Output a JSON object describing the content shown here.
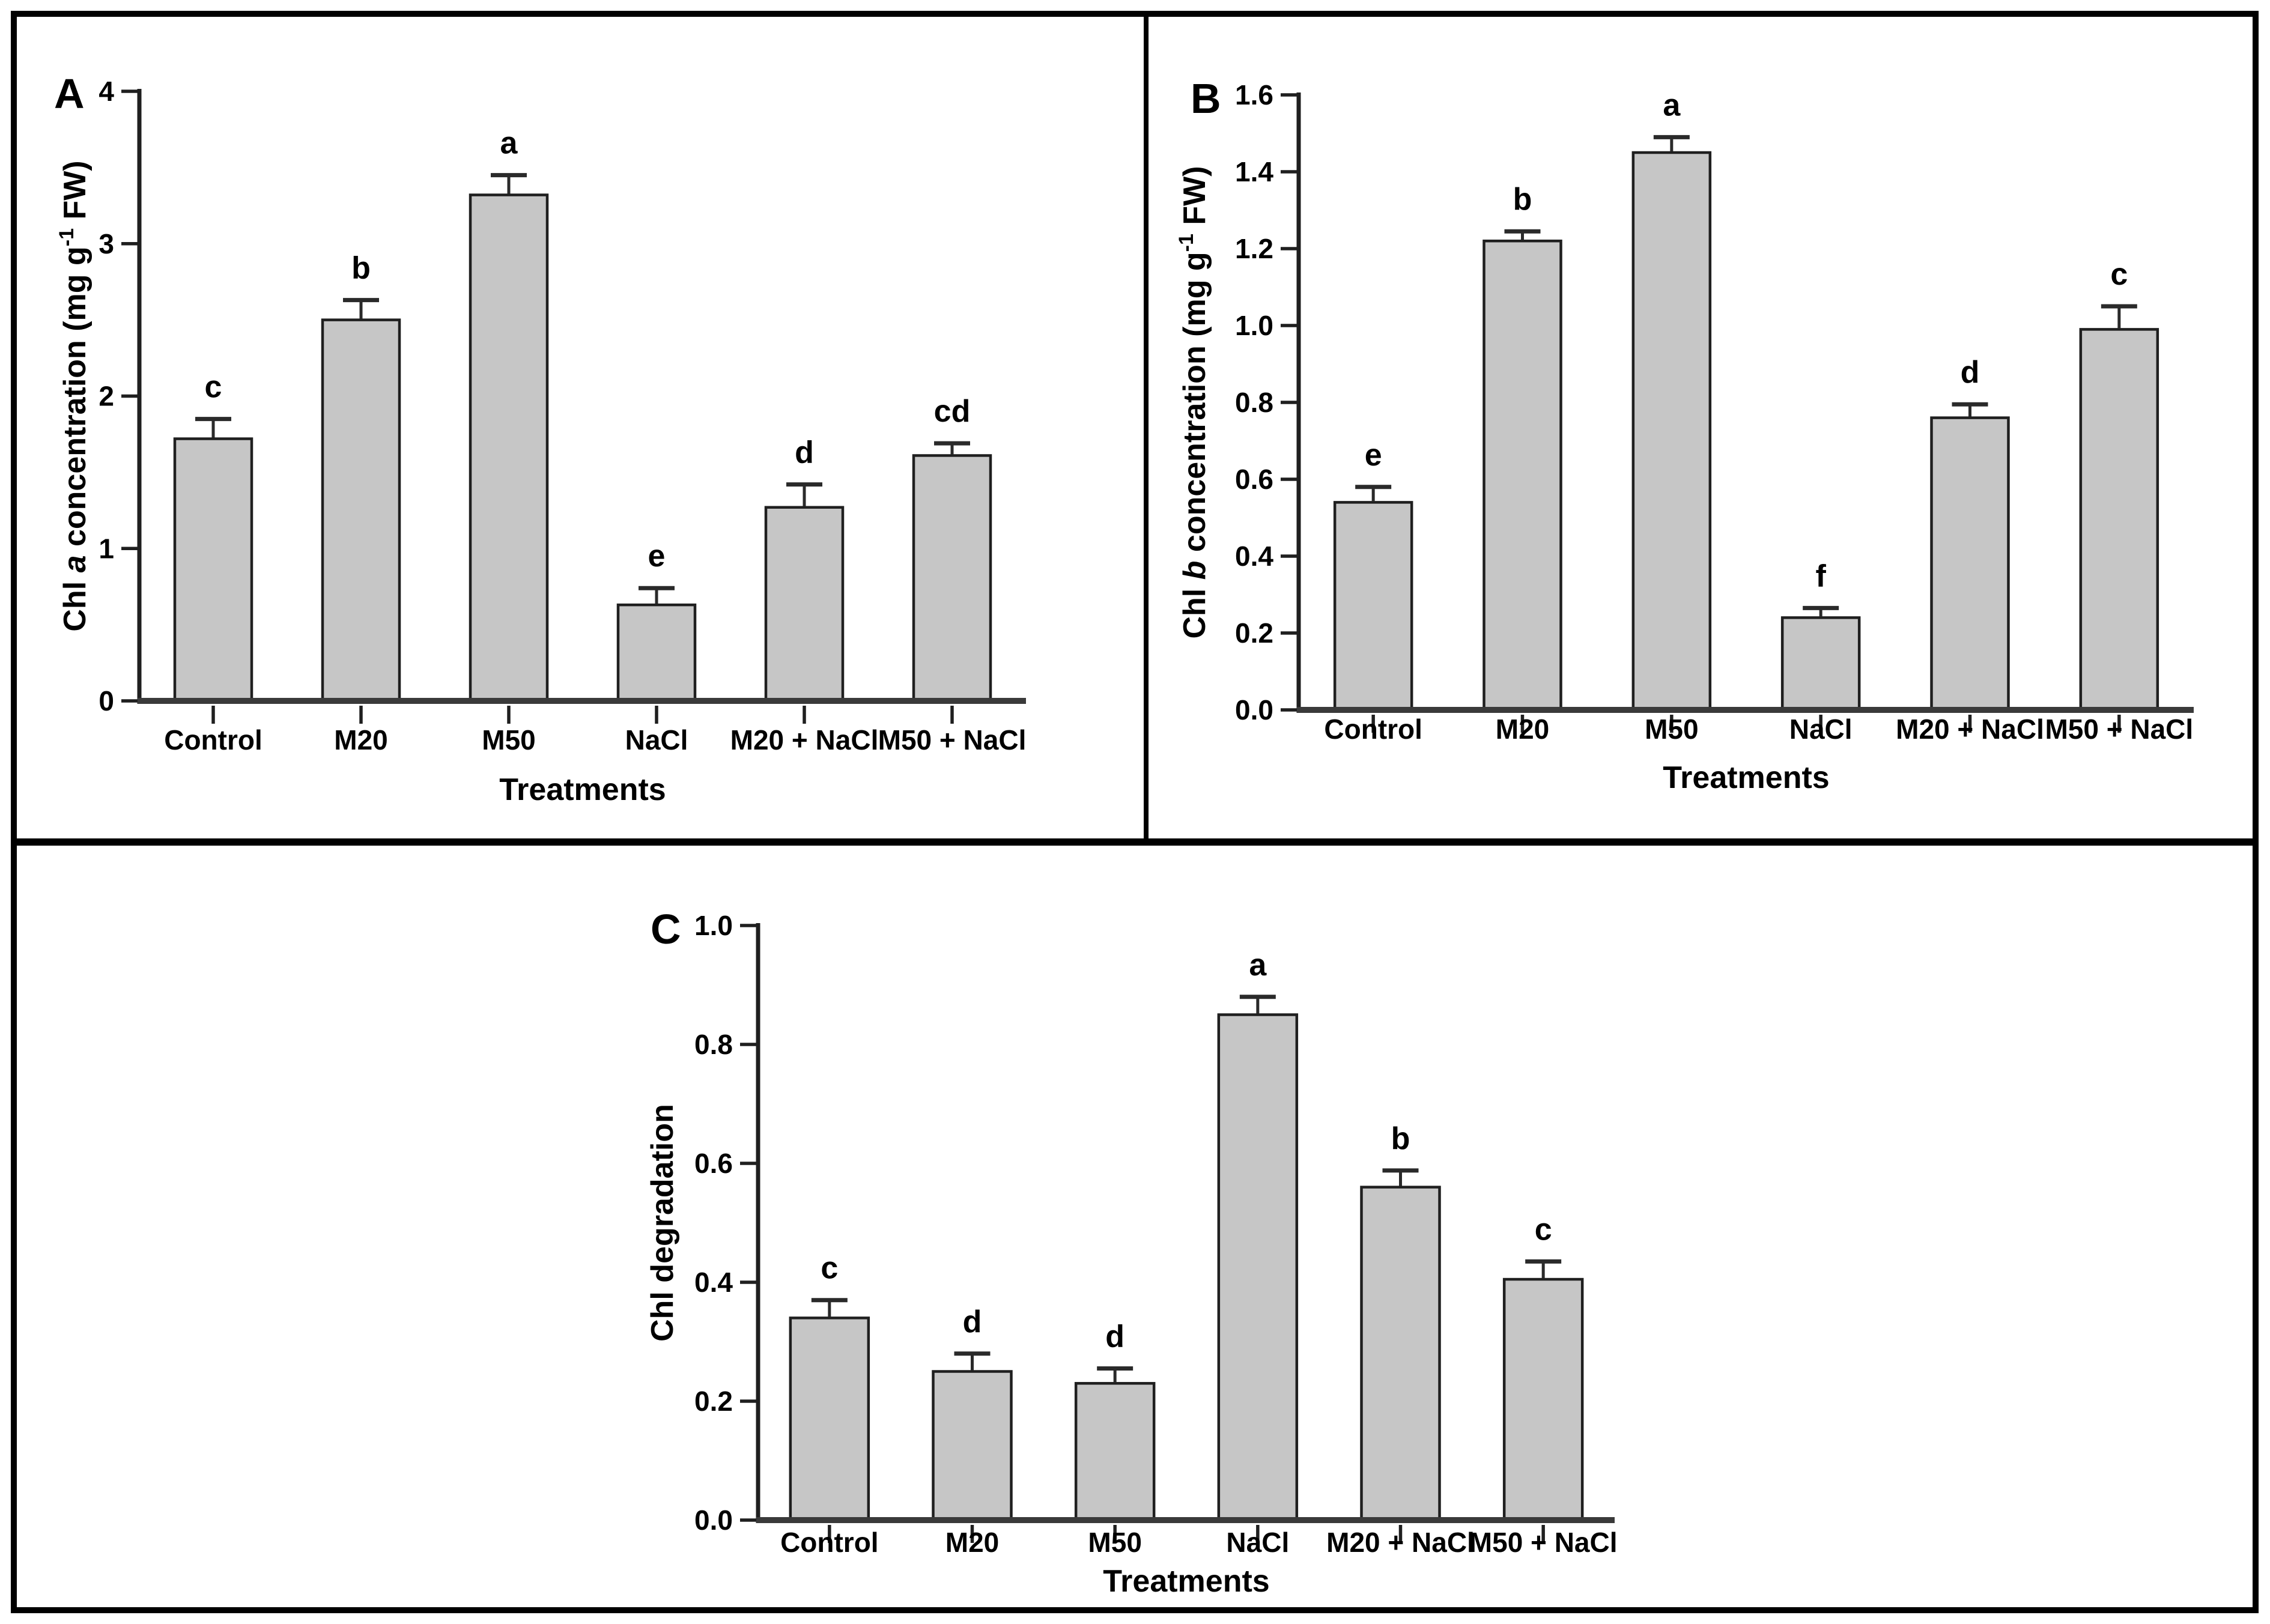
{
  "figure": {
    "description": "Three-panel bar chart figure with significance letters",
    "colors": {
      "bar_fill": "#c6c6c6",
      "bar_stroke": "#1f1f1f",
      "axis": "#1f1f1f",
      "baseline": "#3a3a3a",
      "error_bar": "#2a2a2a",
      "text": "#000000",
      "frame": "#000000",
      "background": "#ffffff"
    }
  },
  "chart_data": [
    {
      "panel_label": "A",
      "type": "bar",
      "title": "",
      "xlabel": "Treatments",
      "ylabel_text": "Chl a concentration (mg g-1 FW)",
      "ylabel_parts": [
        {
          "text": "Chl "
        },
        {
          "text": "a",
          "italic": true
        },
        {
          "text": " concentration (mg g"
        },
        {
          "text": "-1",
          "sup": true
        },
        {
          "text": " FW)"
        }
      ],
      "categories": [
        "Control",
        "M20",
        "M50",
        "NaCl",
        "M20 + NaCl",
        "M50 + NaCl"
      ],
      "values": [
        1.72,
        2.5,
        3.32,
        0.63,
        1.27,
        1.61
      ],
      "errors": [
        0.13,
        0.13,
        0.13,
        0.11,
        0.15,
        0.08
      ],
      "sig_letters": [
        "c",
        "b",
        "a",
        "e",
        "d",
        "cd"
      ],
      "ylim": [
        0,
        4
      ],
      "ytick_values": [
        0,
        1,
        2,
        3,
        4
      ],
      "ytick_labels": [
        "0",
        "1",
        "2",
        "3",
        "4"
      ],
      "grid": false,
      "legend": null
    },
    {
      "panel_label": "B",
      "type": "bar",
      "title": "",
      "xlabel": "Treatments",
      "ylabel_text": "Chl b concentration (mg g-1 FW)",
      "ylabel_parts": [
        {
          "text": "Chl "
        },
        {
          "text": "b",
          "italic": true
        },
        {
          "text": " concentration (mg g"
        },
        {
          "text": "-1",
          "sup": true
        },
        {
          "text": " FW)"
        }
      ],
      "categories": [
        "Control",
        "M20",
        "M50",
        "NaCl",
        "M20 + NaCl",
        "M50 + NaCl"
      ],
      "values": [
        0.54,
        1.22,
        1.45,
        0.24,
        0.76,
        0.99
      ],
      "errors": [
        0.04,
        0.025,
        0.04,
        0.025,
        0.035,
        0.06
      ],
      "sig_letters": [
        "e",
        "b",
        "a",
        "f",
        "d",
        "c"
      ],
      "ylim": [
        0,
        1.6
      ],
      "ytick_values": [
        0,
        0.2,
        0.4,
        0.6,
        0.8,
        1.0,
        1.2,
        1.4,
        1.6
      ],
      "ytick_labels": [
        "0.0",
        "0.2",
        "0.4",
        "0.6",
        "0.8",
        "1.0",
        "1.2",
        "1.4",
        "1.6"
      ],
      "grid": false,
      "legend": null
    },
    {
      "panel_label": "C",
      "type": "bar",
      "title": "",
      "xlabel": "Treatments",
      "ylabel_text": "Chl degradation",
      "ylabel_parts": [
        {
          "text": "Chl degradation"
        }
      ],
      "categories": [
        "Control",
        "M20",
        "M50",
        "NaCl",
        "M20 + NaCl",
        "M50 + NaCl"
      ],
      "values": [
        0.34,
        0.25,
        0.23,
        0.85,
        0.56,
        0.405
      ],
      "errors": [
        0.03,
        0.03,
        0.025,
        0.03,
        0.028,
        0.03
      ],
      "sig_letters": [
        "c",
        "d",
        "d",
        "a",
        "b",
        "c"
      ],
      "ylim": [
        0,
        1.0
      ],
      "ytick_values": [
        0,
        0.2,
        0.4,
        0.6,
        0.8,
        1.0
      ],
      "ytick_labels": [
        "0.0",
        "0.2",
        "0.4",
        "0.6",
        "0.8",
        "1.0"
      ],
      "grid": false,
      "legend": null
    }
  ]
}
